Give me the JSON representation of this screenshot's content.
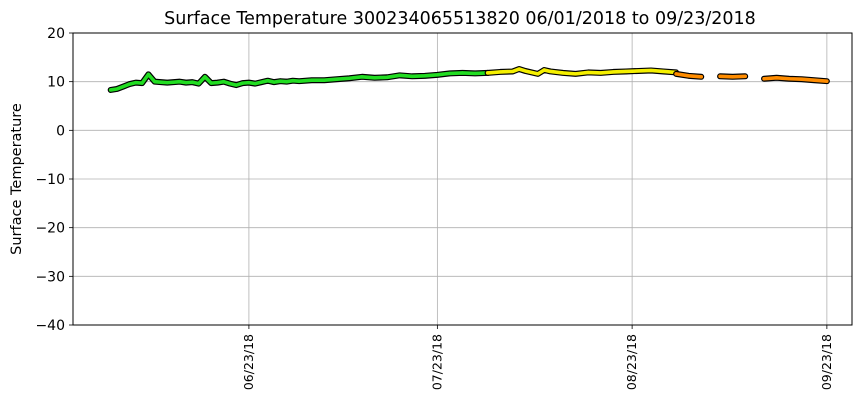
{
  "chart_data": {
    "type": "line",
    "title": "Surface Temperature 300234065513820  06/01/2018 to 09/23/2018",
    "xlabel": "",
    "ylabel": "Surface Temperature",
    "ylim": [
      -40,
      20
    ],
    "xlim": [
      "2018-05-26",
      "2018-09-27"
    ],
    "yticks": [
      -40,
      -30,
      -20,
      -10,
      0,
      10,
      20
    ],
    "xticks": [
      "06/23/18",
      "07/23/18",
      "08/23/18",
      "09/23/18"
    ],
    "xtick_dates": [
      "2018-06-23",
      "2018-07-23",
      "2018-08-23",
      "2018-09-23"
    ],
    "grid": true,
    "series": [
      {
        "color": "#22dd22",
        "points": [
          [
            "2018-06-01",
            8.3
          ],
          [
            "2018-06-02",
            8.5
          ],
          [
            "2018-06-03",
            9.0
          ],
          [
            "2018-06-04",
            9.5
          ],
          [
            "2018-06-05",
            9.8
          ],
          [
            "2018-06-06",
            9.7
          ],
          [
            "2018-06-07",
            11.5
          ],
          [
            "2018-06-08",
            10.0
          ],
          [
            "2018-06-09",
            9.9
          ],
          [
            "2018-06-10",
            9.8
          ],
          [
            "2018-06-11",
            9.9
          ],
          [
            "2018-06-12",
            10.0
          ],
          [
            "2018-06-13",
            9.8
          ],
          [
            "2018-06-14",
            9.9
          ],
          [
            "2018-06-15",
            9.6
          ],
          [
            "2018-06-16",
            11.0
          ],
          [
            "2018-06-17",
            9.7
          ],
          [
            "2018-06-18",
            9.8
          ],
          [
            "2018-06-19",
            10.0
          ],
          [
            "2018-06-20",
            9.6
          ],
          [
            "2018-06-21",
            9.3
          ],
          [
            "2018-06-22",
            9.7
          ],
          [
            "2018-06-23",
            9.8
          ],
          [
            "2018-06-24",
            9.6
          ],
          [
            "2018-06-25",
            9.9
          ],
          [
            "2018-06-26",
            10.2
          ],
          [
            "2018-06-27",
            9.9
          ],
          [
            "2018-06-28",
            10.1
          ],
          [
            "2018-06-29",
            10.0
          ],
          [
            "2018-06-30",
            10.2
          ],
          [
            "2018-07-01",
            10.1
          ],
          [
            "2018-07-03",
            10.3
          ],
          [
            "2018-07-05",
            10.3
          ],
          [
            "2018-07-07",
            10.5
          ],
          [
            "2018-07-09",
            10.7
          ],
          [
            "2018-07-11",
            11.0
          ],
          [
            "2018-07-13",
            10.8
          ],
          [
            "2018-07-15",
            10.9
          ],
          [
            "2018-07-17",
            11.3
          ],
          [
            "2018-07-19",
            11.1
          ],
          [
            "2018-07-21",
            11.2
          ],
          [
            "2018-07-23",
            11.4
          ],
          [
            "2018-07-25",
            11.7
          ],
          [
            "2018-07-27",
            11.8
          ],
          [
            "2018-07-29",
            11.7
          ],
          [
            "2018-07-31",
            11.8
          ]
        ]
      },
      {
        "color": "#f5f000",
        "points": [
          [
            "2018-07-31",
            11.8
          ],
          [
            "2018-08-02",
            12.0
          ],
          [
            "2018-08-04",
            12.1
          ],
          [
            "2018-08-05",
            12.6
          ],
          [
            "2018-08-06",
            12.2
          ],
          [
            "2018-08-08",
            11.6
          ],
          [
            "2018-08-09",
            12.4
          ],
          [
            "2018-08-10",
            12.1
          ],
          [
            "2018-08-12",
            11.8
          ],
          [
            "2018-08-14",
            11.6
          ],
          [
            "2018-08-16",
            11.9
          ],
          [
            "2018-08-18",
            11.8
          ],
          [
            "2018-08-20",
            12.0
          ],
          [
            "2018-08-22",
            12.1
          ],
          [
            "2018-08-24",
            12.2
          ],
          [
            "2018-08-26",
            12.3
          ],
          [
            "2018-08-28",
            12.1
          ],
          [
            "2018-08-30",
            11.9
          ]
        ]
      },
      {
        "color": "#ff8c00",
        "points": [
          [
            "2018-08-30",
            11.6
          ],
          [
            "2018-09-01",
            11.2
          ],
          [
            "2018-09-03",
            11.0
          ]
        ]
      },
      {
        "color": "#ff8c00",
        "points": [
          [
            "2018-09-06",
            11.1
          ],
          [
            "2018-09-08",
            11.0
          ],
          [
            "2018-09-10",
            11.1
          ]
        ]
      },
      {
        "color": "#ff8c00",
        "points": [
          [
            "2018-09-13",
            10.6
          ],
          [
            "2018-09-15",
            10.8
          ],
          [
            "2018-09-17",
            10.6
          ],
          [
            "2018-09-19",
            10.5
          ],
          [
            "2018-09-21",
            10.3
          ],
          [
            "2018-09-23",
            10.1
          ]
        ]
      }
    ]
  }
}
